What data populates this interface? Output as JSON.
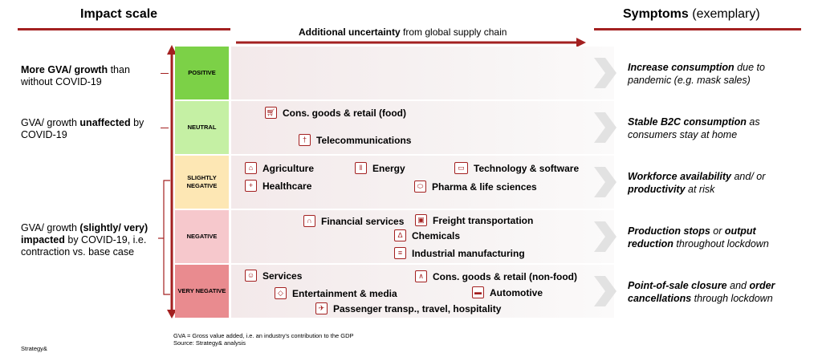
{
  "header": {
    "impact_title": "Impact scale",
    "symptoms_title": "Symptoms",
    "symptoms_sub": "(exemplary)",
    "axis_bold": "Additional uncertainty",
    "axis_rest": " from global supply chain"
  },
  "left": {
    "g1_bold": "More GVA/ growth",
    "g1_rest": " than without COVID-19",
    "g2_pre": "GVA/ growth ",
    "g2_bold": "unaffected",
    "g2_rest": " by COVID-19",
    "g3_pre": "GVA/ growth ",
    "g3_bold": "(slightly/ very) impacted",
    "g3_rest": " by COVID-19, i.e. contraction vs. base case"
  },
  "levels": [
    "POSITIVE",
    "NEUTRAL",
    "SLIGHTLY NEGATIVE",
    "NEGATIVE",
    "VERY NEGATIVE"
  ],
  "level_colors": [
    "#7cd147",
    "#c5f0a4",
    "#fde7b4",
    "#f6c8cc",
    "#e98b8f"
  ],
  "industries": [
    {
      "label": "Cons. goods & retail (food)",
      "icon": "cart-icon"
    },
    {
      "label": "Telecommunications",
      "icon": "antenna-icon"
    },
    {
      "label": "Agriculture",
      "icon": "barn-icon"
    },
    {
      "label": "Energy",
      "icon": "factory-icon"
    },
    {
      "label": "Technology & software",
      "icon": "laptop-icon"
    },
    {
      "label": "Healthcare",
      "icon": "medical-hand-icon"
    },
    {
      "label": "Pharma & life sciences",
      "icon": "pills-icon"
    },
    {
      "label": "Financial services",
      "icon": "bank-icon"
    },
    {
      "label": "Freight transportation",
      "icon": "truck-icon"
    },
    {
      "label": "Chemicals",
      "icon": "flask-icon"
    },
    {
      "label": "Industrial manufacturing",
      "icon": "conveyor-icon"
    },
    {
      "label": "Services",
      "icon": "people-icon"
    },
    {
      "label": "Cons. goods & retail (non-food)",
      "icon": "hanger-icon"
    },
    {
      "label": "Entertainment & media",
      "icon": "ticket-icon"
    },
    {
      "label": "Automotive",
      "icon": "car-icon"
    },
    {
      "label": "Passenger transp., travel, hospitality",
      "icon": "plane-icon"
    }
  ],
  "symptoms": [
    {
      "b1": "Increase consumption",
      "r1": " due to pandemic (e.g. mask sales)"
    },
    {
      "b1": "Stable B2C consumption",
      "r1": " as consumers stay at home"
    },
    {
      "b1": "Workforce availability",
      "r1": " and/ or ",
      "b2": "productivity",
      "r2": " at risk"
    },
    {
      "b1": "Production stops",
      "r1": " or ",
      "b2": "output reduction",
      "r2": " throughout lockdown"
    },
    {
      "b1": "Point-of-sale closure",
      "r1": " and ",
      "b2": "order cancellations",
      "r2": " through lockdown"
    }
  ],
  "footer": {
    "brand": "Strategy&",
    "note1": "GVA = Gross value added, i.e. an industry's contribution to the GDP",
    "note2": "Source: Strategy& analysis"
  },
  "colors": {
    "accent": "#a32020"
  }
}
